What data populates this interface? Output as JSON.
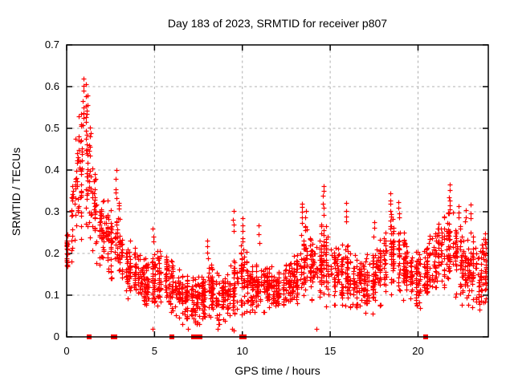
{
  "window": {
    "kind": "gnuplot-style chart image",
    "background": "#ffffff"
  },
  "chart_data": {
    "type": "scatter",
    "title": "Day 183 of 2023, SRMTID for receiver p807",
    "xlabel": "GPS time / hours",
    "ylabel": "SRMTID / TECUs",
    "xlim": [
      0,
      24
    ],
    "ylim": [
      0,
      0.7
    ],
    "xtick_values": [
      0,
      5,
      10,
      15,
      20
    ],
    "xtick_labels": [
      "0",
      "5",
      "10",
      "15",
      "20"
    ],
    "ytick_values": [
      0,
      0.1,
      0.2,
      0.3,
      0.4,
      0.5,
      0.6,
      0.7
    ],
    "ytick_labels": [
      "0",
      "0.1",
      "0.2",
      "0.3",
      "0.4",
      "0.5",
      "0.6",
      "0.7"
    ],
    "grid": true,
    "grid_style": "dashed",
    "legend": "none",
    "marker": "plus",
    "marker_color": "#ff0000",
    "grid_color": "#b0b0b0",
    "border_color": "#000000",
    "seed": 18307,
    "points_per_hour": 100,
    "x_data_end": 23.87,
    "envelope_comment": "piecewise-linear envelope of the scatter cloud: [hour, mid TECU, spread TECU]",
    "envelope": [
      [
        0.0,
        0.19,
        0.04
      ],
      [
        0.3,
        0.28,
        0.1
      ],
      [
        0.7,
        0.42,
        0.16
      ],
      [
        1.0,
        0.45,
        0.17
      ],
      [
        1.3,
        0.38,
        0.15
      ],
      [
        1.7,
        0.28,
        0.09
      ],
      [
        2.1,
        0.25,
        0.08
      ],
      [
        2.5,
        0.23,
        0.08
      ],
      [
        2.8,
        0.26,
        0.11
      ],
      [
        3.2,
        0.18,
        0.07
      ],
      [
        3.7,
        0.16,
        0.06
      ],
      [
        4.2,
        0.14,
        0.05
      ],
      [
        4.7,
        0.13,
        0.06
      ],
      [
        5.2,
        0.14,
        0.06
      ],
      [
        5.7,
        0.14,
        0.06
      ],
      [
        6.2,
        0.11,
        0.05
      ],
      [
        6.7,
        0.1,
        0.05
      ],
      [
        7.2,
        0.09,
        0.05
      ],
      [
        7.7,
        0.09,
        0.05
      ],
      [
        8.2,
        0.11,
        0.06
      ],
      [
        8.7,
        0.09,
        0.05
      ],
      [
        9.2,
        0.1,
        0.05
      ],
      [
        9.6,
        0.13,
        0.08
      ],
      [
        10.0,
        0.14,
        0.08
      ],
      [
        10.5,
        0.12,
        0.05
      ],
      [
        11.0,
        0.13,
        0.06
      ],
      [
        11.5,
        0.12,
        0.05
      ],
      [
        12.0,
        0.11,
        0.04
      ],
      [
        12.5,
        0.12,
        0.05
      ],
      [
        13.0,
        0.14,
        0.06
      ],
      [
        13.5,
        0.19,
        0.08
      ],
      [
        14.0,
        0.17,
        0.07
      ],
      [
        14.6,
        0.19,
        0.1
      ],
      [
        15.0,
        0.16,
        0.07
      ],
      [
        15.5,
        0.15,
        0.06
      ],
      [
        16.0,
        0.15,
        0.08
      ],
      [
        16.5,
        0.13,
        0.05
      ],
      [
        17.0,
        0.13,
        0.06
      ],
      [
        17.5,
        0.14,
        0.07
      ],
      [
        18.0,
        0.17,
        0.07
      ],
      [
        18.5,
        0.21,
        0.09
      ],
      [
        19.0,
        0.19,
        0.08
      ],
      [
        19.5,
        0.15,
        0.06
      ],
      [
        20.0,
        0.14,
        0.06
      ],
      [
        20.5,
        0.16,
        0.07
      ],
      [
        21.0,
        0.19,
        0.07
      ],
      [
        21.5,
        0.2,
        0.08
      ],
      [
        22.0,
        0.21,
        0.09
      ],
      [
        22.5,
        0.17,
        0.08
      ],
      [
        23.0,
        0.17,
        0.08
      ],
      [
        23.5,
        0.13,
        0.06
      ],
      [
        23.87,
        0.17,
        0.08
      ]
    ],
    "spikes_comment": "tall narrow vertical strings of markers: [hour, yLow, yHigh, nPoints]",
    "spikes": [
      [
        0.95,
        0.5,
        0.63,
        8
      ],
      [
        1.1,
        0.45,
        0.6,
        6
      ],
      [
        2.8,
        0.33,
        0.41,
        4
      ],
      [
        4.9,
        0.22,
        0.27,
        3
      ],
      [
        8.0,
        0.18,
        0.24,
        4
      ],
      [
        9.5,
        0.25,
        0.31,
        4
      ],
      [
        10.0,
        0.22,
        0.3,
        5
      ],
      [
        10.95,
        0.22,
        0.28,
        3
      ],
      [
        13.4,
        0.27,
        0.33,
        5
      ],
      [
        13.6,
        0.25,
        0.31,
        4
      ],
      [
        14.6,
        0.29,
        0.37,
        6
      ],
      [
        15.9,
        0.27,
        0.33,
        4
      ],
      [
        17.5,
        0.24,
        0.28,
        3
      ],
      [
        18.45,
        0.29,
        0.35,
        5
      ],
      [
        18.9,
        0.28,
        0.33,
        4
      ],
      [
        21.8,
        0.3,
        0.37,
        6
      ],
      [
        22.3,
        0.28,
        0.32,
        3
      ],
      [
        22.7,
        0.27,
        0.31,
        3
      ],
      [
        23.0,
        0.28,
        0.33,
        3
      ]
    ],
    "zero_value_points_hours": [
      1.3,
      2.65,
      2.75,
      6.0,
      7.2,
      7.3,
      7.5,
      7.55,
      7.6,
      9.95,
      10.0,
      10.05,
      10.1,
      20.45
    ],
    "low_outliers": [
      [
        4.9,
        0.02
      ],
      [
        6.6,
        0.03
      ],
      [
        6.9,
        0.02
      ],
      [
        7.4,
        0.03
      ],
      [
        8.6,
        0.02
      ],
      [
        8.7,
        0.03
      ],
      [
        9.4,
        0.02
      ],
      [
        9.5,
        0.015
      ],
      [
        14.2,
        0.02
      ]
    ]
  }
}
